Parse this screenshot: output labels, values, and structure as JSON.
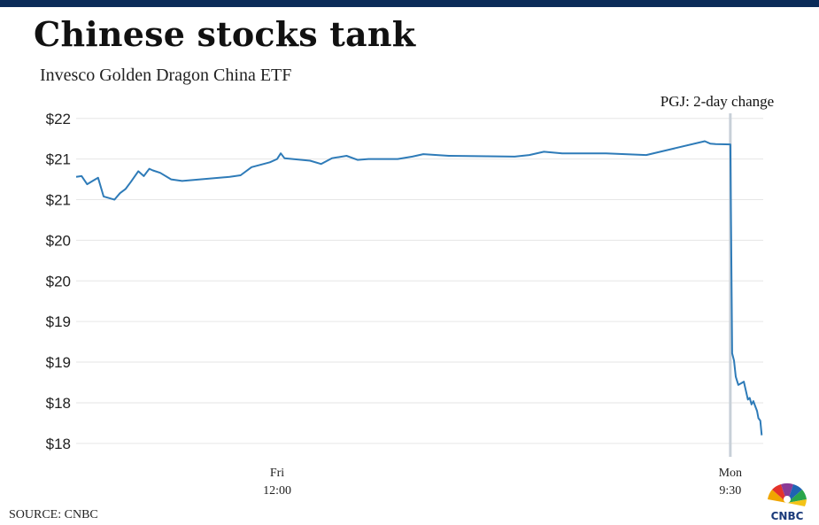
{
  "title": "Chinese stocks tank",
  "subtitle": "Invesco Golden Dragon China ETF",
  "source": "SOURCE: CNBC",
  "logo_text": "CNBC",
  "colors": {
    "line": "#2e7bb8",
    "topbar": "#0b2c59",
    "marker": "#c8d0d8",
    "grid": "#e6e6e6"
  },
  "chart_data": {
    "type": "line",
    "title": "Chinese stocks tank",
    "subtitle": "Invesco Golden Dragon China ETF",
    "xlabel": "",
    "ylabel": "",
    "y_tick_labels": [
      "$22",
      "$21",
      "$21",
      "$20",
      "$20",
      "$19",
      "$19",
      "$18",
      "$18"
    ],
    "y_tick_values": [
      21.9,
      21.4,
      20.9,
      20.4,
      19.9,
      19.4,
      18.9,
      18.4,
      17.9
    ],
    "ylim": [
      17.8,
      22.05
    ],
    "x_ticks": [
      {
        "label_top": "Fri",
        "label_bottom": "12:00",
        "x": 6.5
      },
      {
        "label_top": "Mon",
        "label_bottom": "9:30",
        "x": 18.9
      }
    ],
    "xlim": [
      1.0,
      19.8
    ],
    "grid": true,
    "annotation": {
      "text": "PGJ: 2-day change",
      "x": 18.9
    },
    "series": [
      {
        "values": [
          [
            1.0,
            21.18
          ],
          [
            1.15,
            21.19
          ],
          [
            1.3,
            21.09
          ],
          [
            1.45,
            21.13
          ],
          [
            1.6,
            21.17
          ],
          [
            1.75,
            20.94
          ],
          [
            1.9,
            20.92
          ],
          [
            2.05,
            20.9
          ],
          [
            2.2,
            20.98
          ],
          [
            2.35,
            21.03
          ],
          [
            2.5,
            21.12
          ],
          [
            2.7,
            21.25
          ],
          [
            2.85,
            21.19
          ],
          [
            3.0,
            21.28
          ],
          [
            3.1,
            21.26
          ],
          [
            3.3,
            21.23
          ],
          [
            3.6,
            21.15
          ],
          [
            3.9,
            21.13
          ],
          [
            5.2,
            21.18
          ],
          [
            5.5,
            21.2
          ],
          [
            5.8,
            21.3
          ],
          [
            6.3,
            21.36
          ],
          [
            6.5,
            21.4
          ],
          [
            6.6,
            21.47
          ],
          [
            6.7,
            21.41
          ],
          [
            7.4,
            21.38
          ],
          [
            7.7,
            21.34
          ],
          [
            8.0,
            21.41
          ],
          [
            8.4,
            21.44
          ],
          [
            8.7,
            21.39
          ],
          [
            9.0,
            21.4
          ],
          [
            9.8,
            21.4
          ],
          [
            10.2,
            21.43
          ],
          [
            10.5,
            21.46
          ],
          [
            11.2,
            21.44
          ],
          [
            13.0,
            21.43
          ],
          [
            13.4,
            21.45
          ],
          [
            13.8,
            21.49
          ],
          [
            14.3,
            21.47
          ],
          [
            15.5,
            21.47
          ],
          [
            16.6,
            21.45
          ],
          [
            18.2,
            21.62
          ],
          [
            18.35,
            21.59
          ],
          [
            18.5,
            21.585
          ],
          [
            18.9,
            21.58
          ],
          [
            18.95,
            19.01
          ],
          [
            19.0,
            18.92
          ],
          [
            19.05,
            18.72
          ],
          [
            19.12,
            18.62
          ],
          [
            19.2,
            18.64
          ],
          [
            19.27,
            18.66
          ],
          [
            19.32,
            18.56
          ],
          [
            19.38,
            18.44
          ],
          [
            19.43,
            18.46
          ],
          [
            19.48,
            18.38
          ],
          [
            19.53,
            18.42
          ],
          [
            19.58,
            18.36
          ],
          [
            19.63,
            18.3
          ],
          [
            19.67,
            18.21
          ],
          [
            19.72,
            18.18
          ],
          [
            19.76,
            18.0
          ]
        ]
      }
    ]
  }
}
